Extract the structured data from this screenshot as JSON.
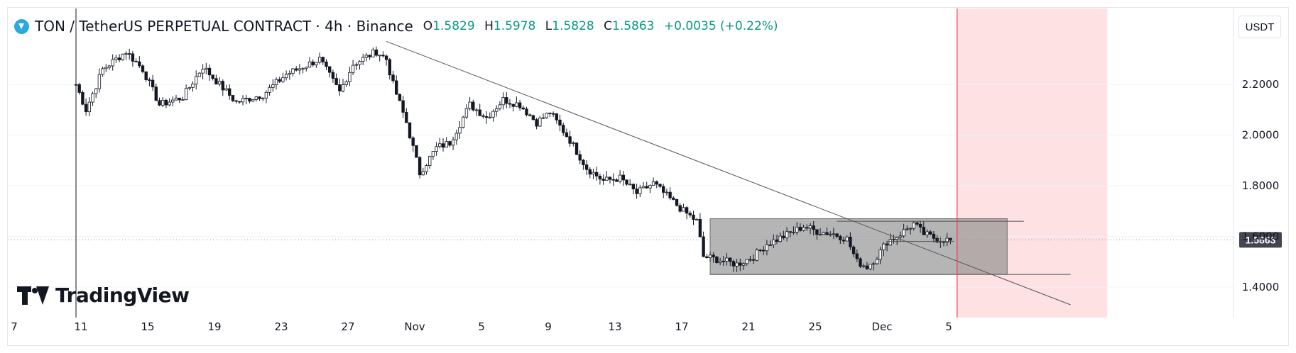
{
  "header": {
    "symbol": "TON",
    "separator": "/",
    "pair_desc": "TetherUS PERPETUAL CONTRACT · 4h · Binance",
    "ohlc": {
      "o_label": "O",
      "o": "1.5829",
      "h_label": "H",
      "h": "1.5978",
      "l_label": "L",
      "l": "1.5828",
      "c_label": "C",
      "c": "1.5863",
      "change": "+0.0035 (+0.22%)"
    }
  },
  "currency_button": "USDT",
  "branding": "TradingView",
  "icons": {
    "symbol_logo": "ton-coin-icon",
    "brand_logo": "tradingview-logo-icon"
  },
  "colors": {
    "candle": "#131722",
    "trendline": "#555555",
    "range_box": "#888888",
    "vertical_marker": "#f23645",
    "future_zone": "#fde1e3",
    "last_price_bg": "#434651",
    "ohlc_values": "#089981"
  },
  "chart_data": {
    "type": "candlestick",
    "interval": "4h",
    "x_ticks": [
      "7",
      "11",
      "15",
      "19",
      "23",
      "27",
      "Nov",
      "5",
      "9",
      "13",
      "17",
      "21",
      "25",
      "Dec",
      "5"
    ],
    "y_ticks": [
      "2.2000",
      "2.0000",
      "1.8000",
      "1.6000",
      "1.4000"
    ],
    "ylim": [
      1.26,
      2.5
    ],
    "last_price": "1.5863",
    "price_path": [
      [
        0,
        2.2
      ],
      [
        3,
        2.1
      ],
      [
        8,
        2.26
      ],
      [
        15,
        2.33
      ],
      [
        20,
        2.26
      ],
      [
        25,
        2.12
      ],
      [
        32,
        2.15
      ],
      [
        38,
        2.27
      ],
      [
        43,
        2.2
      ],
      [
        48,
        2.13
      ],
      [
        56,
        2.16
      ],
      [
        63,
        2.24
      ],
      [
        68,
        2.27
      ],
      [
        73,
        2.3
      ],
      [
        79,
        2.17
      ],
      [
        83,
        2.28
      ],
      [
        90,
        2.33
      ],
      [
        93,
        2.3
      ],
      [
        95,
        2.2
      ],
      [
        99,
        2.05
      ],
      [
        103,
        1.85
      ],
      [
        108,
        1.95
      ],
      [
        112,
        1.97
      ],
      [
        118,
        2.12
      ],
      [
        123,
        2.07
      ],
      [
        128,
        2.14
      ],
      [
        133,
        2.12
      ],
      [
        138,
        2.05
      ],
      [
        142,
        2.09
      ],
      [
        148,
        1.98
      ],
      [
        153,
        1.87
      ],
      [
        158,
        1.82
      ],
      [
        163,
        1.83
      ],
      [
        168,
        1.77
      ],
      [
        173,
        1.81
      ],
      [
        177,
        1.76
      ],
      [
        182,
        1.7
      ],
      [
        186,
        1.66
      ],
      [
        188,
        1.52
      ],
      [
        192,
        1.51
      ],
      [
        198,
        1.49
      ],
      [
        203,
        1.52
      ],
      [
        207,
        1.57
      ],
      [
        212,
        1.6
      ],
      [
        218,
        1.64
      ],
      [
        222,
        1.62
      ],
      [
        227,
        1.61
      ],
      [
        231,
        1.59
      ],
      [
        234,
        1.5
      ],
      [
        237,
        1.48
      ],
      [
        240,
        1.52
      ],
      [
        243,
        1.58
      ],
      [
        247,
        1.61
      ],
      [
        251,
        1.65
      ],
      [
        254,
        1.61
      ],
      [
        258,
        1.59
      ],
      [
        262,
        1.585
      ]
    ],
    "trendline": {
      "from": [
        93,
        2.37
      ],
      "to": [
        298,
        1.33
      ]
    },
    "range_box": {
      "x": [
        190,
        279
      ],
      "y": [
        1.45,
        1.67
      ]
    },
    "range_lines": [
      {
        "x": [
          228,
          284
        ],
        "y": 1.66
      },
      {
        "x": [
          190,
          298
        ],
        "y": 1.45
      },
      {
        "x": [
          243,
          263
        ],
        "y": 1.58
      }
    ],
    "vertical_marker_x": 264,
    "future_zone_x": [
      264,
      309
    ]
  }
}
